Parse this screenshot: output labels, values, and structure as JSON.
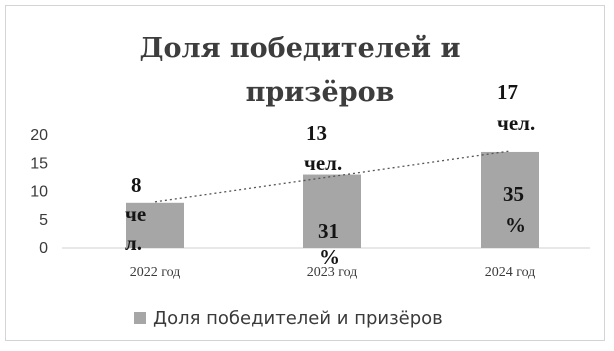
{
  "chart_data": {
    "type": "bar",
    "title": "Доля победителей и призёров",
    "categories": [
      "2022 год",
      "2023 год",
      "2024 год"
    ],
    "series": [
      {
        "name": "Доля победителей и призёров",
        "values": [
          8,
          13,
          17
        ],
        "color": "#a6a6a6"
      }
    ],
    "count_labels": [
      "8 чел.",
      "13 чел.",
      "17 чел."
    ],
    "percent_labels": [
      "",
      "31 %",
      "35 %"
    ],
    "ylim": [
      0,
      20
    ],
    "yticks": [
      0,
      5,
      10,
      15,
      20
    ],
    "trendline": "linear, dotted",
    "grid": false,
    "legend": "bottom"
  }
}
